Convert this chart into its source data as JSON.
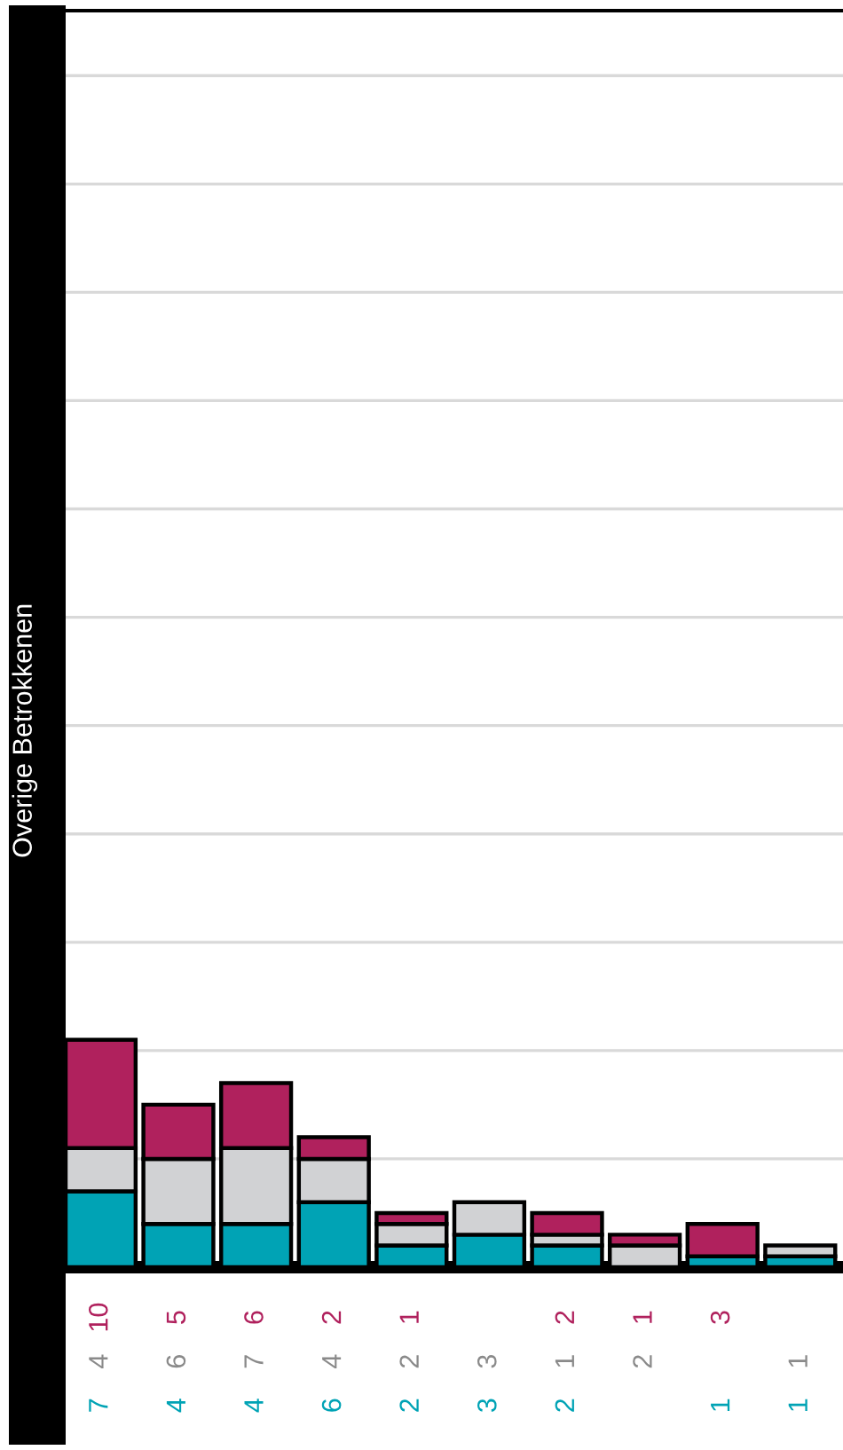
{
  "chart_data": {
    "type": "bar",
    "stacked": true,
    "ylabel": "Overige Betrokkenen",
    "categories": [
      null,
      null,
      null,
      null,
      null,
      null,
      null,
      null,
      null,
      null
    ],
    "series": [
      {
        "color": "#00a3b5",
        "values": [
          7,
          4,
          4,
          6,
          2,
          3,
          2,
          null,
          1,
          1
        ]
      },
      {
        "color": "#d1d2d4",
        "values": [
          4,
          6,
          7,
          4,
          2,
          3,
          1,
          2,
          null,
          1
        ]
      },
      {
        "color": "#b0215d",
        "values": [
          10,
          5,
          6,
          2,
          1,
          null,
          2,
          1,
          3,
          null
        ]
      }
    ],
    "ylim": [
      0,
      116
    ],
    "yticks": [
      {
        "value": 10,
        "label": null
      },
      {
        "value": 20,
        "label": null
      },
      {
        "value": 30,
        "label": null
      },
      {
        "value": 40,
        "label": null
      },
      {
        "value": 50,
        "label": null
      },
      {
        "value": 60,
        "label": null
      },
      {
        "value": 70,
        "label": null
      },
      {
        "value": 80,
        "label": null
      },
      {
        "value": 90,
        "label": null
      },
      {
        "value": 100,
        "label": null
      },
      {
        "value": 110,
        "label": null
      }
    ],
    "grid": "y",
    "data_labels": true
  }
}
